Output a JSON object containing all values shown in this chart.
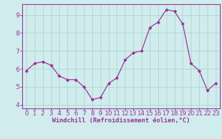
{
  "x": [
    0,
    1,
    2,
    3,
    4,
    5,
    6,
    7,
    8,
    9,
    10,
    11,
    12,
    13,
    14,
    15,
    16,
    17,
    18,
    19,
    20,
    21,
    22,
    23
  ],
  "y": [
    5.9,
    6.3,
    6.4,
    6.2,
    5.6,
    5.4,
    5.4,
    5.0,
    4.3,
    4.4,
    5.2,
    5.5,
    6.5,
    6.9,
    7.0,
    8.3,
    8.6,
    9.3,
    9.2,
    8.5,
    6.3,
    5.9,
    4.8,
    5.2
  ],
  "line_color": "#993399",
  "marker_color": "#993399",
  "bg_color": "#d0ecec",
  "grid_color": "#aacece",
  "xlabel": "Windchill (Refroidissement éolien,°C)",
  "xlabel_color": "#993399",
  "tick_color": "#993399",
  "spine_color": "#993399",
  "ylim": [
    3.8,
    9.6
  ],
  "xlim": [
    -0.5,
    23.5
  ],
  "yticks": [
    4,
    5,
    6,
    7,
    8,
    9
  ],
  "xticks": [
    0,
    1,
    2,
    3,
    4,
    5,
    6,
    7,
    8,
    9,
    10,
    11,
    12,
    13,
    14,
    15,
    16,
    17,
    18,
    19,
    20,
    21,
    22,
    23
  ],
  "fontsize_xlabel": 6.5,
  "fontsize_ticks": 6.5,
  "linewidth": 0.9,
  "markersize": 2.2
}
